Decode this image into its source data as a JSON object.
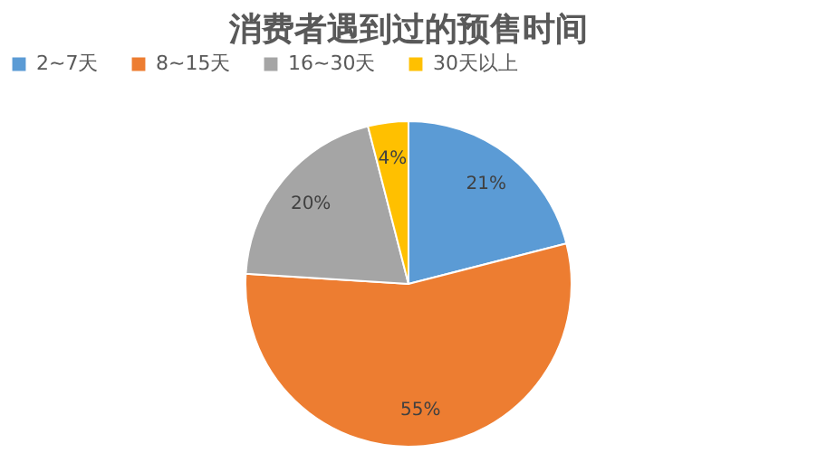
{
  "chart_data": {
    "type": "pie",
    "title": "消费者遇到过的预售时间",
    "categories": [
      "2~7天",
      "8~15天",
      "16~30天",
      "30天以上"
    ],
    "values": [
      21,
      55,
      20,
      4
    ],
    "colors": [
      "#5b9bd5",
      "#ed7d31",
      "#a5a5a5",
      "#ffc000"
    ],
    "value_labels": [
      "21%",
      "55%",
      "20%",
      "4%"
    ],
    "legend": "top"
  }
}
